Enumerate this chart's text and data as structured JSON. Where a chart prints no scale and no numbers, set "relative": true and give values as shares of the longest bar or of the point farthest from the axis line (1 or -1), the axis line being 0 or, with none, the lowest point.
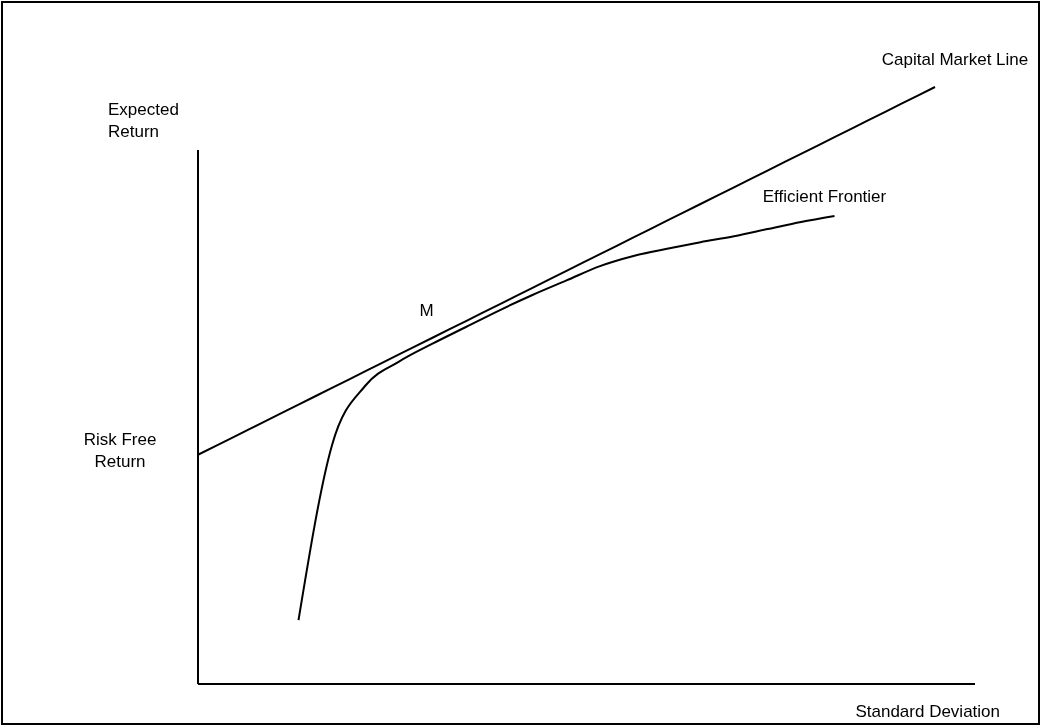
{
  "chart_data": {
    "type": "line",
    "relative": true,
    "xlabel": "Standard Deviation",
    "ylabel": "Expected Return",
    "categories": [
      null,
      null,
      null,
      null,
      null,
      null,
      null,
      null,
      null,
      null,
      null,
      null,
      null,
      null,
      null,
      null,
      null,
      null,
      null,
      null,
      null,
      null,
      null
    ],
    "series": [
      {
        "name": "Capital Market Line",
        "color": "#000000",
        "values": [
          0.384,
          0.412,
          0.44,
          0.468,
          0.496,
          0.524,
          0.552,
          0.58,
          0.608,
          0.636,
          0.664,
          0.692,
          0.72,
          0.748,
          0.776,
          0.804,
          0.832,
          0.86,
          0.888,
          0.916,
          0.944,
          0.972,
          1.0
        ]
      },
      {
        "name": "Efficient Frontier",
        "color": "#000000",
        "values": [
          null,
          null,
          null,
          0.107,
          0.4,
          0.5,
          0.54,
          0.57,
          0.598,
          0.626,
          0.652,
          0.676,
          0.7,
          0.717,
          0.729,
          0.74,
          0.75,
          0.762,
          0.774,
          0.784,
          null,
          null,
          null
        ]
      }
    ],
    "annotations": [
      "M",
      "Risk Free Return"
    ],
    "marker": "none",
    "line_style": "solid"
  }
}
